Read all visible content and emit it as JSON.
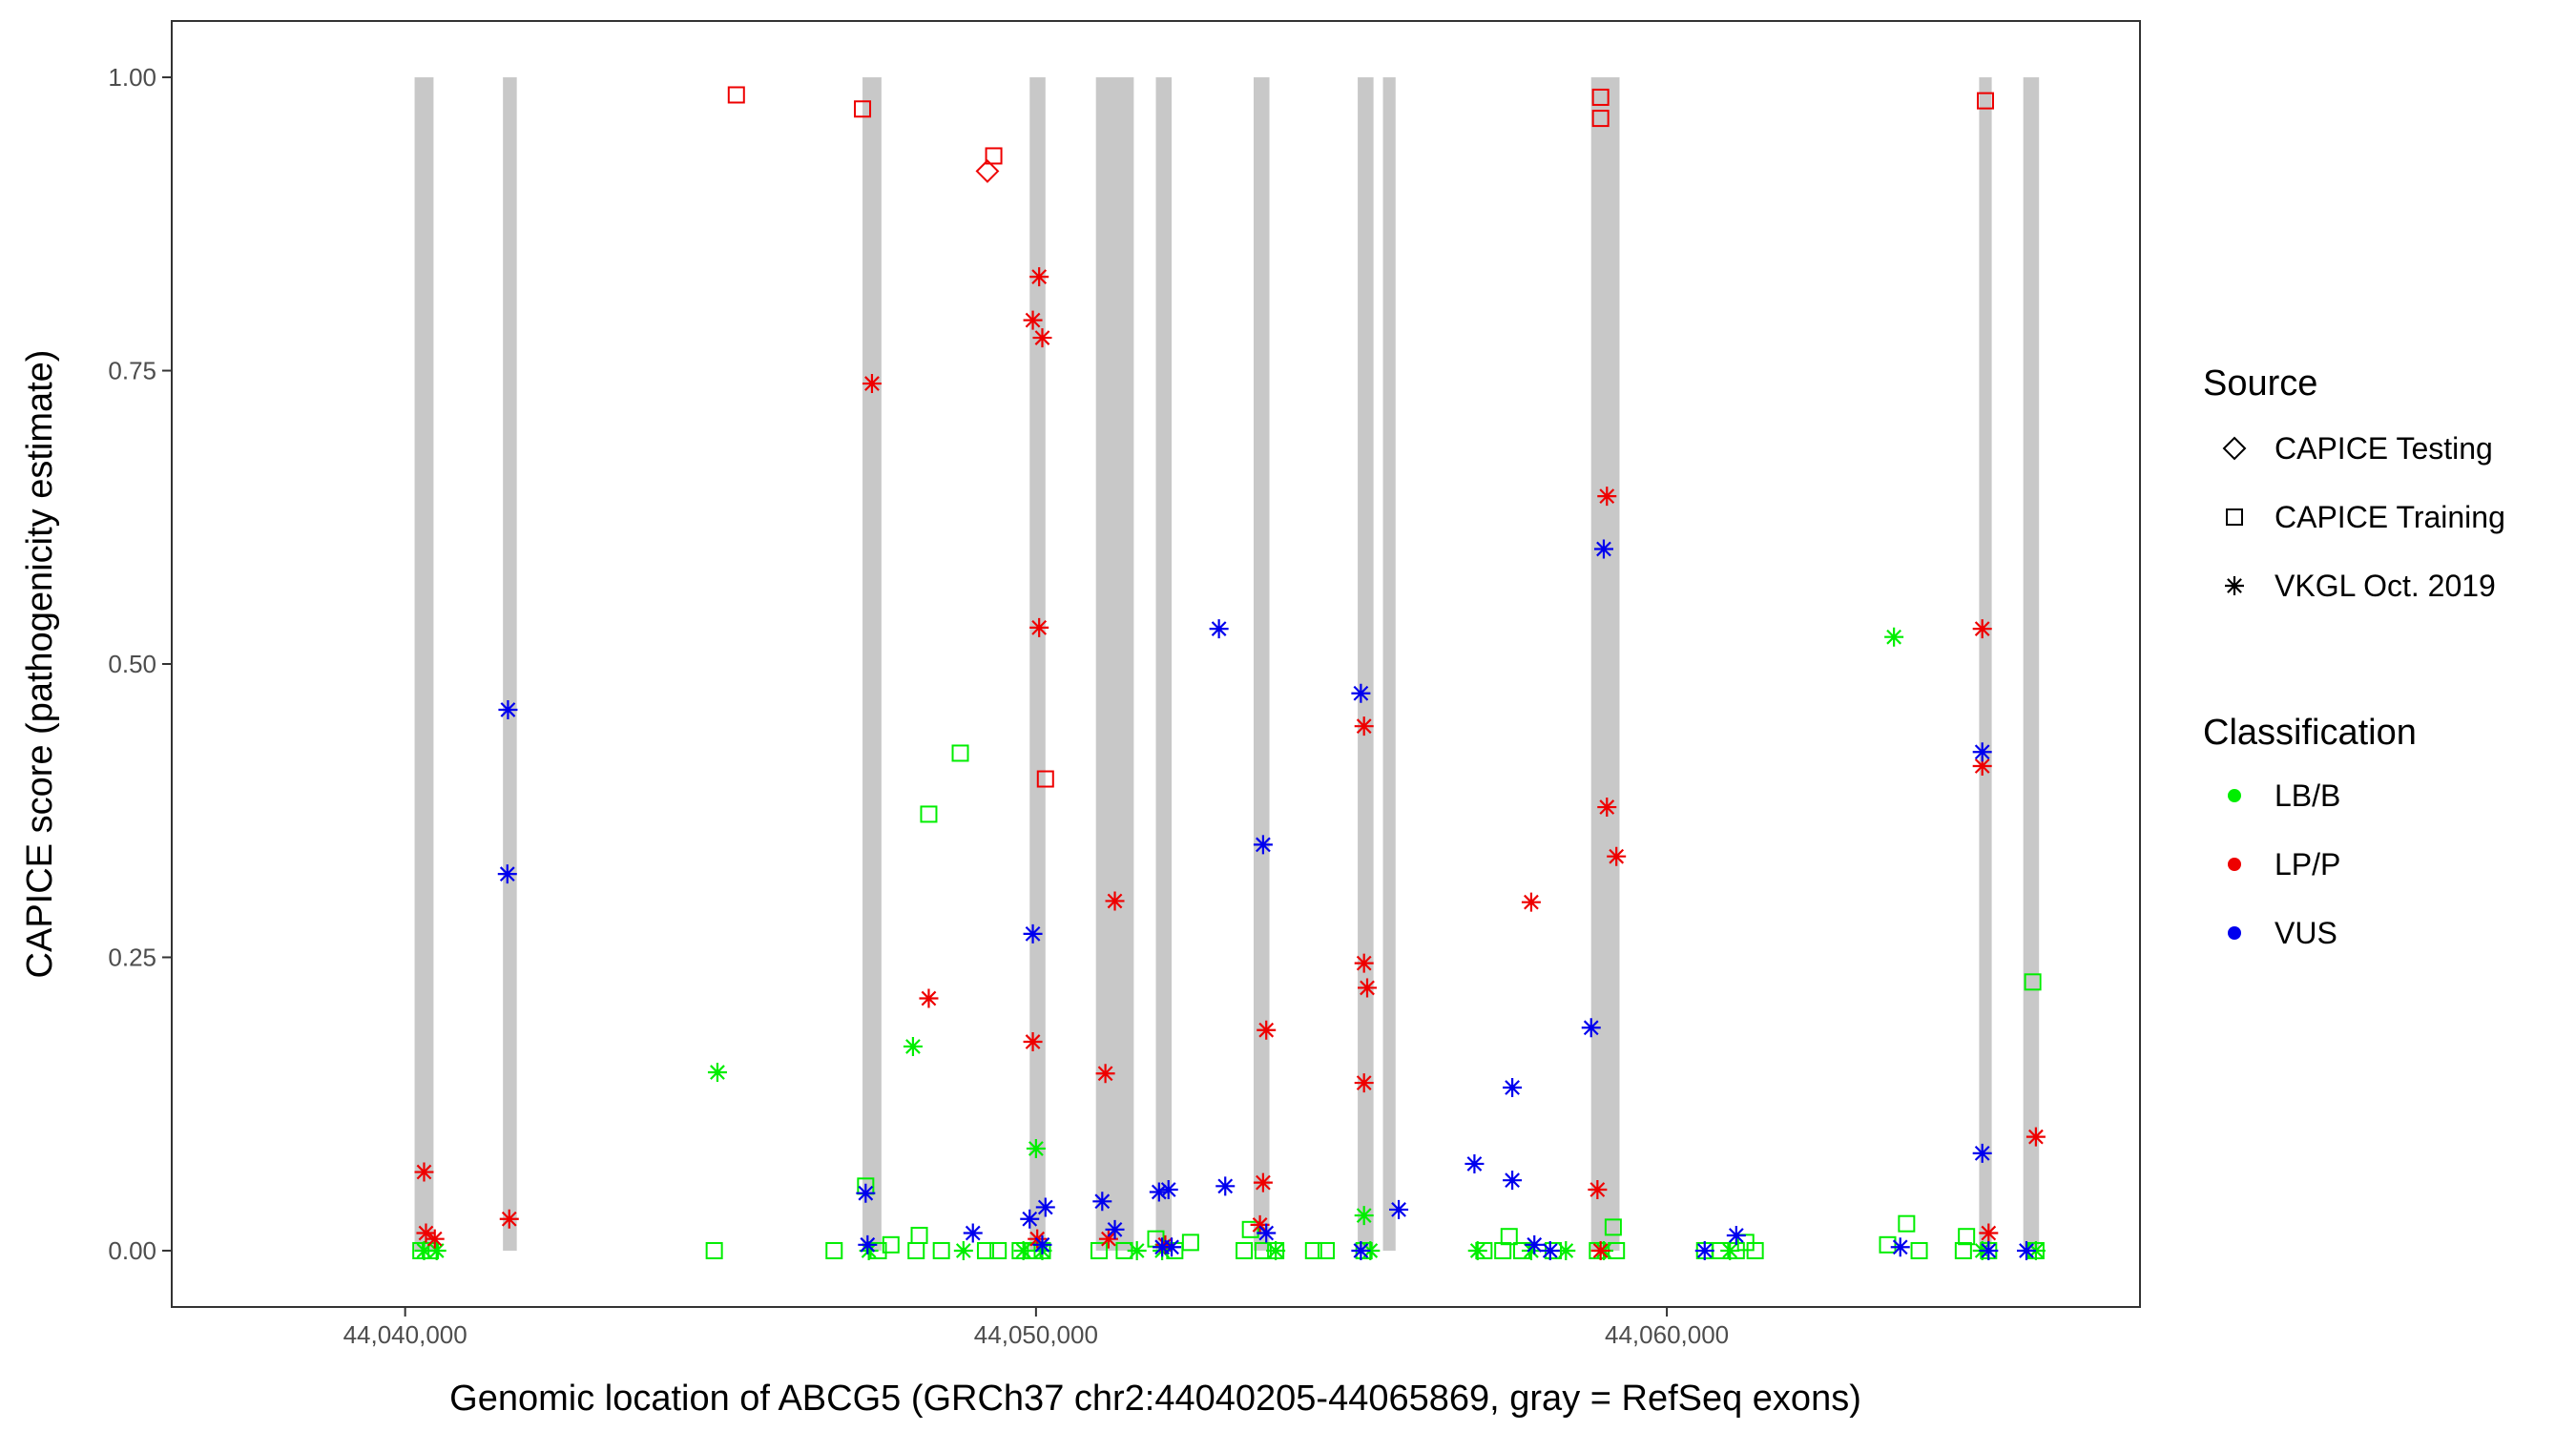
{
  "chart_data": {
    "type": "scatter",
    "xlabel": "Genomic location of ABCG5 (GRCh37 chr2:44040205-44065869, gray = RefSeq exons)",
    "ylabel": "CAPICE score (pathogenicity estimate)",
    "xlim": [
      44036300,
      44067500
    ],
    "ylim": [
      -0.048,
      1.048
    ],
    "x_ticks": [
      44040000,
      44050000,
      44060000
    ],
    "x_tick_labels": [
      "44,040,000",
      "44,050,000",
      "44,060,000"
    ],
    "y_ticks": [
      0,
      0.25,
      0.5,
      0.75,
      1
    ],
    "y_tick_labels": [
      "0.00",
      "0.25",
      "0.50",
      "0.75",
      "1.00"
    ],
    "grid": false,
    "legend_position": "right",
    "exon_color": "#c8c8c8",
    "exons": [
      [
        44040150,
        44040450
      ],
      [
        44041550,
        44041770
      ],
      [
        44047250,
        44047550
      ],
      [
        44049900,
        44050150
      ],
      [
        44050950,
        44051550
      ],
      [
        44051900,
        44052150
      ],
      [
        44053450,
        44053700
      ],
      [
        44055100,
        44055350
      ],
      [
        44055500,
        44055700
      ],
      [
        44058800,
        44059250
      ],
      [
        44064950,
        44065150
      ],
      [
        44065650,
        44065900
      ]
    ],
    "legend_source": {
      "title": "Source",
      "items": [
        {
          "label": "CAPICE Testing",
          "shape": "diamond"
        },
        {
          "label": "CAPICE Training",
          "shape": "square"
        },
        {
          "label": "VKGL Oct. 2019",
          "shape": "asterisk"
        }
      ]
    },
    "legend_classification": {
      "title": "Classification",
      "items": [
        {
          "label": "LB/B",
          "color": "#00ee00"
        },
        {
          "label": "LP/P",
          "color": "#ee0000"
        },
        {
          "label": "VUS",
          "color": "#0000ee"
        }
      ]
    },
    "series": [
      {
        "name": "CAPICE Testing",
        "classification": "LP/P",
        "shape": "diamond",
        "color": "#ee0000",
        "points": [
          [
            44049230,
            0.92
          ]
        ]
      },
      {
        "name": "CAPICE Training",
        "classification": "LP/P",
        "shape": "square",
        "color": "#ee0000",
        "points": [
          [
            44045250,
            0.985
          ],
          [
            44047250,
            0.973
          ],
          [
            44049330,
            0.933
          ],
          [
            44050150,
            0.402
          ],
          [
            44058950,
            0.983
          ],
          [
            44058950,
            0.965
          ],
          [
            44065050,
            0.98
          ]
        ]
      },
      {
        "name": "CAPICE Training",
        "classification": "LB/B",
        "shape": "square",
        "color": "#00ee00",
        "points": [
          [
            44040250,
            0.0
          ],
          [
            44040400,
            0.0
          ],
          [
            44044900,
            0.0
          ],
          [
            44046800,
            0.0
          ],
          [
            44047300,
            0.055
          ],
          [
            44047500,
            0.0
          ],
          [
            44047700,
            0.005
          ],
          [
            44048100,
            0.0
          ],
          [
            44048150,
            0.013
          ],
          [
            44048300,
            0.372
          ],
          [
            44048500,
            0.0
          ],
          [
            44048800,
            0.424
          ],
          [
            44049200,
            0.0
          ],
          [
            44049400,
            0.0
          ],
          [
            44049750,
            0.0
          ],
          [
            44049950,
            0.0
          ],
          [
            44050100,
            0.0
          ],
          [
            44051000,
            0.0
          ],
          [
            44051400,
            0.0
          ],
          [
            44051900,
            0.01
          ],
          [
            44052200,
            0.0
          ],
          [
            44052450,
            0.007
          ],
          [
            44053300,
            0.0
          ],
          [
            44053400,
            0.018
          ],
          [
            44053600,
            0.0
          ],
          [
            44053800,
            0.0
          ],
          [
            44054400,
            0.0
          ],
          [
            44054600,
            0.0
          ],
          [
            44055200,
            0.0
          ],
          [
            44057100,
            0.0
          ],
          [
            44057400,
            0.0
          ],
          [
            44057500,
            0.012
          ],
          [
            44057700,
            0.0
          ],
          [
            44058200,
            0.0
          ],
          [
            44058900,
            0.0
          ],
          [
            44059150,
            0.02
          ],
          [
            44059200,
            0.0
          ],
          [
            44060600,
            0.0
          ],
          [
            44060850,
            0.0
          ],
          [
            44061100,
            0.0
          ],
          [
            44061250,
            0.007
          ],
          [
            44061400,
            0.0
          ],
          [
            44063500,
            0.005
          ],
          [
            44063800,
            0.023
          ],
          [
            44064000,
            0.0
          ],
          [
            44064700,
            0.0
          ],
          [
            44064750,
            0.012
          ],
          [
            44065100,
            0.0
          ],
          [
            44065800,
            0.229
          ],
          [
            44065850,
            0.0
          ]
        ]
      },
      {
        "name": "VKGL Oct. 2019",
        "classification": "LB/B",
        "shape": "asterisk",
        "color": "#00ee00",
        "points": [
          [
            44040300,
            0.0
          ],
          [
            44040500,
            0.0
          ],
          [
            44044950,
            0.152
          ],
          [
            44047350,
            0.0
          ],
          [
            44048050,
            0.174
          ],
          [
            44048850,
            0.0
          ],
          [
            44049800,
            0.0
          ],
          [
            44050000,
            0.087
          ],
          [
            44050100,
            0.0
          ],
          [
            44051600,
            0.0
          ],
          [
            44052000,
            0.0
          ],
          [
            44053800,
            0.0
          ],
          [
            44055200,
            0.03
          ],
          [
            44055300,
            0.0
          ],
          [
            44057000,
            0.0
          ],
          [
            44057850,
            0.0
          ],
          [
            44058400,
            0.0
          ],
          [
            44059000,
            0.0
          ],
          [
            44061000,
            0.0
          ],
          [
            44063600,
            0.523
          ],
          [
            44065000,
            0.0
          ],
          [
            44065850,
            0.0
          ]
        ]
      },
      {
        "name": "VKGL Oct. 2019",
        "classification": "LP/P",
        "shape": "asterisk",
        "color": "#ee0000",
        "points": [
          [
            44040300,
            0.067
          ],
          [
            44040330,
            0.015
          ],
          [
            44040470,
            0.01
          ],
          [
            44041650,
            0.027
          ],
          [
            44047400,
            0.739
          ],
          [
            44048300,
            0.215
          ],
          [
            44049950,
            0.793
          ],
          [
            44050050,
            0.83
          ],
          [
            44050100,
            0.778
          ],
          [
            44050050,
            0.531
          ],
          [
            44049950,
            0.178
          ],
          [
            44050020,
            0.01
          ],
          [
            44051100,
            0.151
          ],
          [
            44051250,
            0.298
          ],
          [
            44051150,
            0.01
          ],
          [
            44052050,
            0.005
          ],
          [
            44053650,
            0.188
          ],
          [
            44053600,
            0.058
          ],
          [
            44053550,
            0.022
          ],
          [
            44055200,
            0.447
          ],
          [
            44055200,
            0.245
          ],
          [
            44055250,
            0.224
          ],
          [
            44055200,
            0.143
          ],
          [
            44057850,
            0.297
          ],
          [
            44058900,
            0.052
          ],
          [
            44059050,
            0.643
          ],
          [
            44059050,
            0.378
          ],
          [
            44059200,
            0.336
          ],
          [
            44058950,
            0.0
          ],
          [
            44065000,
            0.53
          ],
          [
            44065000,
            0.413
          ],
          [
            44065100,
            0.015
          ],
          [
            44065850,
            0.097
          ]
        ]
      },
      {
        "name": "VKGL Oct. 2019",
        "classification": "VUS",
        "shape": "asterisk",
        "color": "#0000ee",
        "points": [
          [
            44041630,
            0.461
          ],
          [
            44041620,
            0.321
          ],
          [
            44047300,
            0.049
          ],
          [
            44047330,
            0.005
          ],
          [
            44049000,
            0.015
          ],
          [
            44049950,
            0.27
          ],
          [
            44049900,
            0.027
          ],
          [
            44050150,
            0.037
          ],
          [
            44050100,
            0.005
          ],
          [
            44051050,
            0.042
          ],
          [
            44051250,
            0.018
          ],
          [
            44051950,
            0.05
          ],
          [
            44052100,
            0.052
          ],
          [
            44052000,
            0.003
          ],
          [
            44052150,
            0.003
          ],
          [
            44052900,
            0.53
          ],
          [
            44053000,
            0.055
          ],
          [
            44053600,
            0.346
          ],
          [
            44053650,
            0.015
          ],
          [
            44055150,
            0.475
          ],
          [
            44055150,
            0.0
          ],
          [
            44055750,
            0.035
          ],
          [
            44056950,
            0.074
          ],
          [
            44057550,
            0.139
          ],
          [
            44057550,
            0.06
          ],
          [
            44057900,
            0.005
          ],
          [
            44058150,
            0.0
          ],
          [
            44058800,
            0.19
          ],
          [
            44059000,
            0.598
          ],
          [
            44060600,
            0.0
          ],
          [
            44061100,
            0.013
          ],
          [
            44063700,
            0.003
          ],
          [
            44065000,
            0.425
          ],
          [
            44065000,
            0.083
          ],
          [
            44065100,
            0.0
          ],
          [
            44065700,
            0.0
          ]
        ]
      }
    ]
  }
}
